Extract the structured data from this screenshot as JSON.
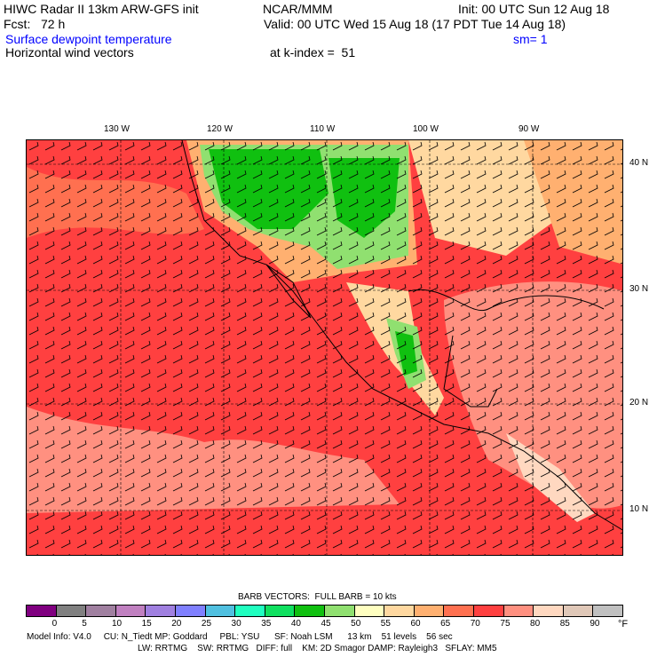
{
  "header": {
    "title": "HIWC Radar II 13km ARW-GFS init",
    "org": "NCAR/MMM",
    "init": "Init: 00 UTC Sun 12 Aug 18",
    "fcst": "Fcst:   72 h",
    "valid": "Valid: 00 UTC Wed 15 Aug 18 (17 PDT Tue 14 Aug 18)",
    "field": "Surface dewpoint temperature",
    "smooth": "sm= 1",
    "vectors": "Horizontal wind vectors",
    "level": "at k-index =  51"
  },
  "map": {
    "lon_labels": [
      "130 W",
      "120 W",
      "110 W",
      "100 W",
      "90 W"
    ],
    "lat_labels": [
      "40 N",
      "30 N",
      "20 N",
      "10 N"
    ]
  },
  "legend": {
    "barb_note": "BARB VECTORS:  FULL BARB = 10 kts",
    "ticks": [
      "0",
      "5",
      "10",
      "15",
      "20",
      "25",
      "30",
      "35",
      "40",
      "45",
      "50",
      "55",
      "60",
      "65",
      "70",
      "75",
      "80",
      "85",
      "90"
    ],
    "unit": "°F",
    "colors": [
      "#800080",
      "#808080",
      "#a080a0",
      "#c080c0",
      "#a080e0",
      "#8080ff",
      "#50c0e0",
      "#20ffc0",
      "#10e060",
      "#10c010",
      "#90e070",
      "#ffffc0",
      "#ffd8a0",
      "#ffb070",
      "#ff7050",
      "#ff4040",
      "#ff9080",
      "#ffd8c0",
      "#e0c8b8",
      "#c0c0c0"
    ]
  },
  "footer": {
    "line1": "Model Info: V4.0     CU: N_Tiedt MP: Goddard     PBL: YSU      SF: Noah LSM      13 km    51 levels    56 sec",
    "line2": "LW: RRTMG    SW: RRTMG   DIFF: full    KM: 2D Smagor DAMP: Rayleigh3   SFLAY: MM5"
  }
}
